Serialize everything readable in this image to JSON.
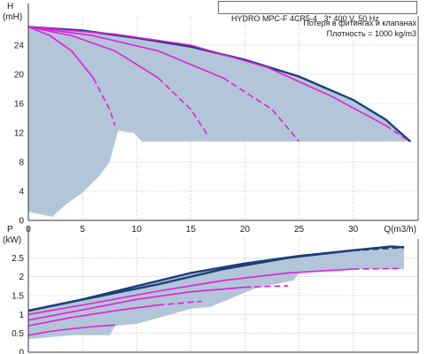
{
  "header": {
    "model": "HYDRO MPC-F 4CR5-4",
    "power_supply": "3* 400 V, 50 Hz",
    "note_losses": "Потеря в фитингах и клапанах",
    "note_density": "Плотность = 1000 kg/m3"
  },
  "colors": {
    "envelope_fill": "#b3c5d8",
    "envelope_edge": "#1d3f7a",
    "pump_curve": "#e020d8",
    "grid": "#9a9a9a",
    "axis": "#333333"
  },
  "chart_data": [
    {
      "type": "line",
      "subtype": "pump-head-curves",
      "xlabel": "Q(m3/h)",
      "ylabel": "H",
      "yunit": "(mH)",
      "xlim": [
        0,
        36
      ],
      "ylim": [
        0,
        28
      ],
      "xticks": [
        0,
        5,
        10,
        15,
        20,
        25,
        30
      ],
      "yticks": [
        0,
        4,
        8,
        12,
        16,
        20,
        24
      ],
      "grid": true,
      "envelope": {
        "upper": [
          [
            0,
            26.5
          ],
          [
            5,
            26.0
          ],
          [
            10,
            25.0
          ],
          [
            15,
            23.8
          ],
          [
            20,
            22.0
          ],
          [
            25,
            19.7
          ],
          [
            30,
            16.5
          ],
          [
            33,
            13.8
          ],
          [
            34.5,
            11.8
          ],
          [
            35.3,
            10.8
          ]
        ],
        "lower": [
          [
            35.3,
            10.8
          ],
          [
            25.5,
            10.8
          ],
          [
            10.5,
            10.8
          ],
          [
            9.7,
            12.0
          ],
          [
            8.3,
            12.3
          ],
          [
            7.5,
            8.0
          ],
          [
            6.5,
            6.0
          ],
          [
            5,
            3.8
          ],
          [
            3.5,
            2.2
          ],
          [
            2.2,
            0.5
          ],
          [
            0,
            1.2
          ]
        ]
      },
      "series": [
        {
          "pumps": 1,
          "points": [
            [
              0,
              26.5
            ],
            [
              2,
              25.3
            ],
            [
              4,
              23.2
            ],
            [
              6,
              19.5
            ],
            [
              7.5,
              15.2
            ],
            [
              8,
              13.0
            ]
          ],
          "dashed_from": 7.3
        },
        {
          "pumps": 2,
          "points": [
            [
              0,
              26.5
            ],
            [
              4,
              25.3
            ],
            [
              8,
              23.2
            ],
            [
              12,
              19.5
            ],
            [
              15,
              15.2
            ],
            [
              16.5,
              11.8
            ]
          ],
          "dashed_from": 14.8
        },
        {
          "pumps": 3,
          "points": [
            [
              0,
              26.5
            ],
            [
              6,
              25.3
            ],
            [
              12,
              23.2
            ],
            [
              18,
              19.5
            ],
            [
              22.5,
              15.2
            ],
            [
              25,
              10.8
            ]
          ],
          "dashed_from": 21.8
        },
        {
          "pumps": 4,
          "points": [
            [
              0,
              26.5
            ],
            [
              8,
              25.5
            ],
            [
              15,
              24.0
            ],
            [
              22,
              21.0
            ],
            [
              28,
              17.0
            ],
            [
              33,
              13.0
            ],
            [
              35,
              11.0
            ]
          ],
          "dashed_from": 33.0
        }
      ]
    },
    {
      "type": "line",
      "subtype": "pump-power-curves",
      "xlabel": "",
      "ylabel": "P",
      "yunit": "(kW)",
      "xlim": [
        0,
        36
      ],
      "ylim": [
        0,
        3.0
      ],
      "xticks": [
        0,
        5,
        10,
        15,
        20,
        25,
        30
      ],
      "yticks": [
        0,
        0.5,
        1,
        1.5,
        2,
        2.5
      ],
      "grid": true,
      "envelope": {
        "upper": [
          [
            0,
            1.1
          ],
          [
            5,
            1.4
          ],
          [
            10,
            1.75
          ],
          [
            15,
            2.1
          ],
          [
            20,
            2.35
          ],
          [
            25,
            2.55
          ],
          [
            30,
            2.7
          ],
          [
            33.5,
            2.8
          ],
          [
            34.7,
            2.78
          ]
        ],
        "lower": [
          [
            34.7,
            2.2
          ],
          [
            30,
            2.2
          ],
          [
            25,
            2.1
          ],
          [
            24.5,
            1.9
          ],
          [
            21,
            1.7
          ],
          [
            16.8,
            1.2
          ],
          [
            15,
            1.15
          ],
          [
            12.5,
            0.95
          ],
          [
            10,
            0.75
          ],
          [
            8,
            0.7
          ],
          [
            7.5,
            0.45
          ],
          [
            4,
            0.45
          ],
          [
            0,
            0.35
          ]
        ]
      },
      "series": [
        {
          "pumps": 1,
          "points": [
            [
              0,
              0.45
            ],
            [
              2,
              0.55
            ],
            [
              4,
              0.62
            ],
            [
              6,
              0.68
            ],
            [
              8,
              0.72
            ]
          ],
          "dashed_from": 8
        },
        {
          "pumps": 2,
          "points": [
            [
              0,
              0.7
            ],
            [
              4,
              0.92
            ],
            [
              8,
              1.1
            ],
            [
              12,
              1.25
            ],
            [
              16,
              1.35
            ]
          ],
          "dashed_from": 14.5
        },
        {
          "pumps": 3,
          "points": [
            [
              0,
              0.85
            ],
            [
              5,
              1.12
            ],
            [
              10,
              1.4
            ],
            [
              15,
              1.6
            ],
            [
              20,
              1.72
            ],
            [
              24,
              1.76
            ]
          ],
          "dashed_from": 22
        },
        {
          "pumps": 4,
          "points": [
            [
              0,
              1.0
            ],
            [
              6,
              1.3
            ],
            [
              12,
              1.62
            ],
            [
              18,
              1.9
            ],
            [
              24,
              2.1
            ],
            [
              30,
              2.2
            ],
            [
              34.5,
              2.22
            ]
          ],
          "dashed_from": 31
        },
        {
          "pumps": 4,
          "edge": true,
          "points": [
            [
              0,
              1.1
            ],
            [
              6,
              1.45
            ],
            [
              12,
              1.8
            ],
            [
              18,
              2.2
            ],
            [
              24,
              2.5
            ],
            [
              30,
              2.7
            ],
            [
              34.7,
              2.78
            ]
          ],
          "dashed_from": 33
        }
      ]
    }
  ]
}
